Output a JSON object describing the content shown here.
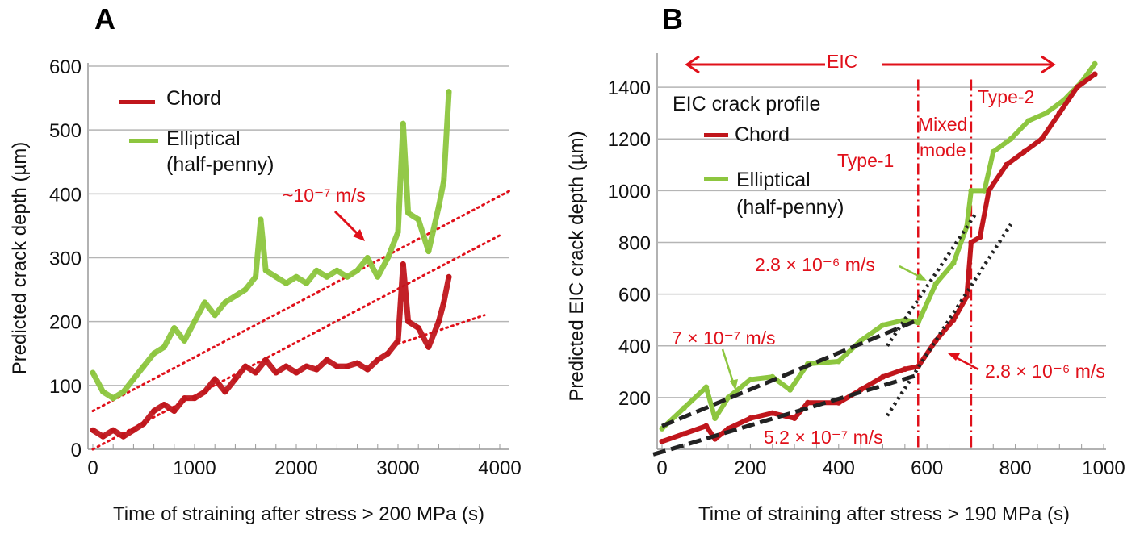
{
  "colors": {
    "chord": "#c0161c",
    "elliptical": "#8dc63f",
    "annotation": "#e0101a",
    "fit": "#222222",
    "grid": "#b5b5b5"
  },
  "chart_data": [
    {
      "panel": "A",
      "type": "scatter",
      "xlabel": "Time of straining after stress > 200 MPa (s)",
      "ylabel": "Predicted crack depth (µm)",
      "xlim": [
        0,
        4000
      ],
      "ylim": [
        0,
        600
      ],
      "xticks": [
        "0",
        "1000",
        "2000",
        "3000",
        "4000"
      ],
      "yticks": [
        "0",
        "100",
        "200",
        "300",
        "400",
        "500",
        "600"
      ],
      "grid": true,
      "legend": {
        "placement": "top-left",
        "entries": [
          "Chord",
          "Elliptical",
          "(half-penny)"
        ]
      },
      "series": [
        {
          "name": "Chord",
          "x": [
            0,
            100,
            200,
            300,
            400,
            500,
            600,
            700,
            800,
            900,
            1000,
            1100,
            1200,
            1300,
            1400,
            1500,
            1600,
            1700,
            1800,
            1900,
            2000,
            2100,
            2200,
            2300,
            2400,
            2500,
            2600,
            2700,
            2800,
            2900,
            3000,
            3050,
            3100,
            3200,
            3300,
            3400,
            3450,
            3500
          ],
          "y": [
            30,
            20,
            30,
            20,
            30,
            40,
            60,
            70,
            60,
            80,
            80,
            90,
            110,
            90,
            110,
            130,
            120,
            140,
            120,
            130,
            120,
            130,
            125,
            140,
            130,
            130,
            135,
            125,
            140,
            150,
            170,
            290,
            200,
            190,
            160,
            200,
            230,
            270
          ]
        },
        {
          "name": "Elliptical (half-penny)",
          "x": [
            0,
            100,
            200,
            300,
            400,
            500,
            600,
            700,
            800,
            900,
            1000,
            1100,
            1200,
            1300,
            1400,
            1500,
            1600,
            1650,
            1700,
            1800,
            1900,
            2000,
            2100,
            2200,
            2300,
            2400,
            2500,
            2600,
            2700,
            2800,
            2900,
            3000,
            3050,
            3100,
            3200,
            3300,
            3400,
            3450,
            3500
          ],
          "y": [
            120,
            90,
            80,
            90,
            110,
            130,
            150,
            160,
            190,
            170,
            200,
            230,
            210,
            230,
            240,
            250,
            270,
            360,
            280,
            270,
            260,
            270,
            260,
            280,
            270,
            280,
            270,
            280,
            300,
            270,
            300,
            340,
            510,
            370,
            360,
            310,
            380,
            420,
            560
          ]
        }
      ],
      "trend_lines": [
        {
          "from": [
            0,
            60
          ],
          "to": [
            4100,
            405
          ]
        },
        {
          "from": [
            0,
            0
          ],
          "to": [
            4000,
            335
          ]
        },
        {
          "from": [
            3000,
            165
          ],
          "to": [
            3850,
            210
          ]
        }
      ],
      "annotations": {
        "rate": "~10⁻⁷ m/s"
      }
    },
    {
      "panel": "B",
      "type": "scatter",
      "xlabel": "Time of straining after stress > 190 MPa (s)",
      "ylabel": "Predicted EIC crack depth (µm)",
      "xlim": [
        0,
        1000
      ],
      "ylim": [
        0,
        1500
      ],
      "xticks": [
        "0",
        "200",
        "400",
        "600",
        "800",
        "1000"
      ],
      "yticks": [
        "200",
        "400",
        "600",
        "800",
        "1000",
        "1200",
        "1400"
      ],
      "grid": true,
      "legend": {
        "placement": "top-left",
        "title": "EIC crack profile",
        "entries": [
          "Chord",
          "Elliptical",
          "(half-penny)"
        ]
      },
      "series": [
        {
          "name": "Chord",
          "x": [
            0,
            50,
            100,
            120,
            150,
            200,
            250,
            300,
            330,
            400,
            450,
            500,
            550,
            580,
            620,
            660,
            690,
            700,
            720,
            740,
            780,
            820,
            860,
            900,
            940,
            980
          ],
          "y": [
            30,
            60,
            90,
            40,
            80,
            120,
            140,
            120,
            180,
            180,
            230,
            280,
            310,
            320,
            420,
            500,
            590,
            800,
            820,
            1000,
            1100,
            1150,
            1200,
            1300,
            1400,
            1450
          ]
        },
        {
          "name": "Elliptical (half-penny)",
          "x": [
            0,
            50,
            100,
            120,
            150,
            200,
            250,
            290,
            330,
            400,
            450,
            500,
            550,
            580,
            620,
            660,
            690,
            700,
            730,
            750,
            790,
            830,
            870,
            910,
            950,
            980
          ],
          "y": [
            80,
            160,
            240,
            120,
            200,
            270,
            280,
            230,
            330,
            340,
            420,
            480,
            500,
            490,
            640,
            720,
            860,
            1000,
            1000,
            1150,
            1200,
            1270,
            1300,
            1350,
            1420,
            1490
          ]
        }
      ],
      "fit_lines": [
        {
          "style": "dashed",
          "from": [
            0,
            90
          ],
          "to": [
            580,
            500
          ]
        },
        {
          "style": "dashed",
          "from": [
            -20,
            -20
          ],
          "to": [
            575,
            285
          ]
        },
        {
          "style": "dotted",
          "from": [
            510,
            400
          ],
          "to": [
            710,
            910
          ]
        },
        {
          "style": "dotted",
          "from": [
            510,
            130
          ],
          "to": [
            790,
            870
          ]
        }
      ],
      "regime_boundaries": [
        580,
        700
      ],
      "annotations": {
        "eic": "EIC",
        "type1": "Type-1",
        "mixed1": "Mixed",
        "mixed2": "mode",
        "type2": "Type-2",
        "rate_green_fast": "2.8 × 10⁻⁶ m/s",
        "rate_green_slow": "7 × 10⁻⁷ m/s",
        "rate_red_fast": "2.8 × 10⁻⁶ m/s",
        "rate_red_slow": "5.2 × 10⁻⁷ m/s"
      }
    }
  ]
}
